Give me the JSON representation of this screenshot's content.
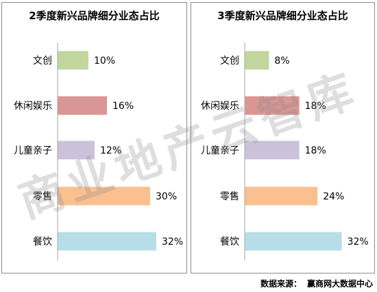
{
  "chart_data": [
    {
      "type": "bar",
      "orientation": "horizontal",
      "title": "2季度新兴品牌细分业态占比",
      "categories": [
        "文创",
        "休闲娱乐",
        "儿童亲子",
        "零售",
        "餐饮"
      ],
      "values": [
        10,
        16,
        12,
        30,
        32
      ],
      "value_labels": [
        "10%",
        "16%",
        "12%",
        "30%",
        "32%"
      ],
      "colors": [
        "#c3d69b",
        "#d99694",
        "#ccc1da",
        "#fac090",
        "#b7dee8"
      ],
      "xlim": [
        0,
        40
      ],
      "grid": false,
      "legend": "none"
    },
    {
      "type": "bar",
      "orientation": "horizontal",
      "title": "3季度新兴品牌细分业态占比",
      "categories": [
        "文创",
        "休闲娱乐",
        "儿童亲子",
        "零售",
        "餐饮"
      ],
      "values": [
        8,
        18,
        18,
        24,
        32
      ],
      "value_labels": [
        "8%",
        "18%",
        "18%",
        "24%",
        "32%"
      ],
      "colors": [
        "#c3d69b",
        "#d99694",
        "#ccc1da",
        "#fac090",
        "#b7dee8"
      ],
      "xlim": [
        0,
        40
      ],
      "grid": false,
      "legend": "none"
    }
  ],
  "watermark": "商业地产云智库",
  "source": {
    "label": "数据来源：",
    "value": "赢商网大数据中心"
  }
}
